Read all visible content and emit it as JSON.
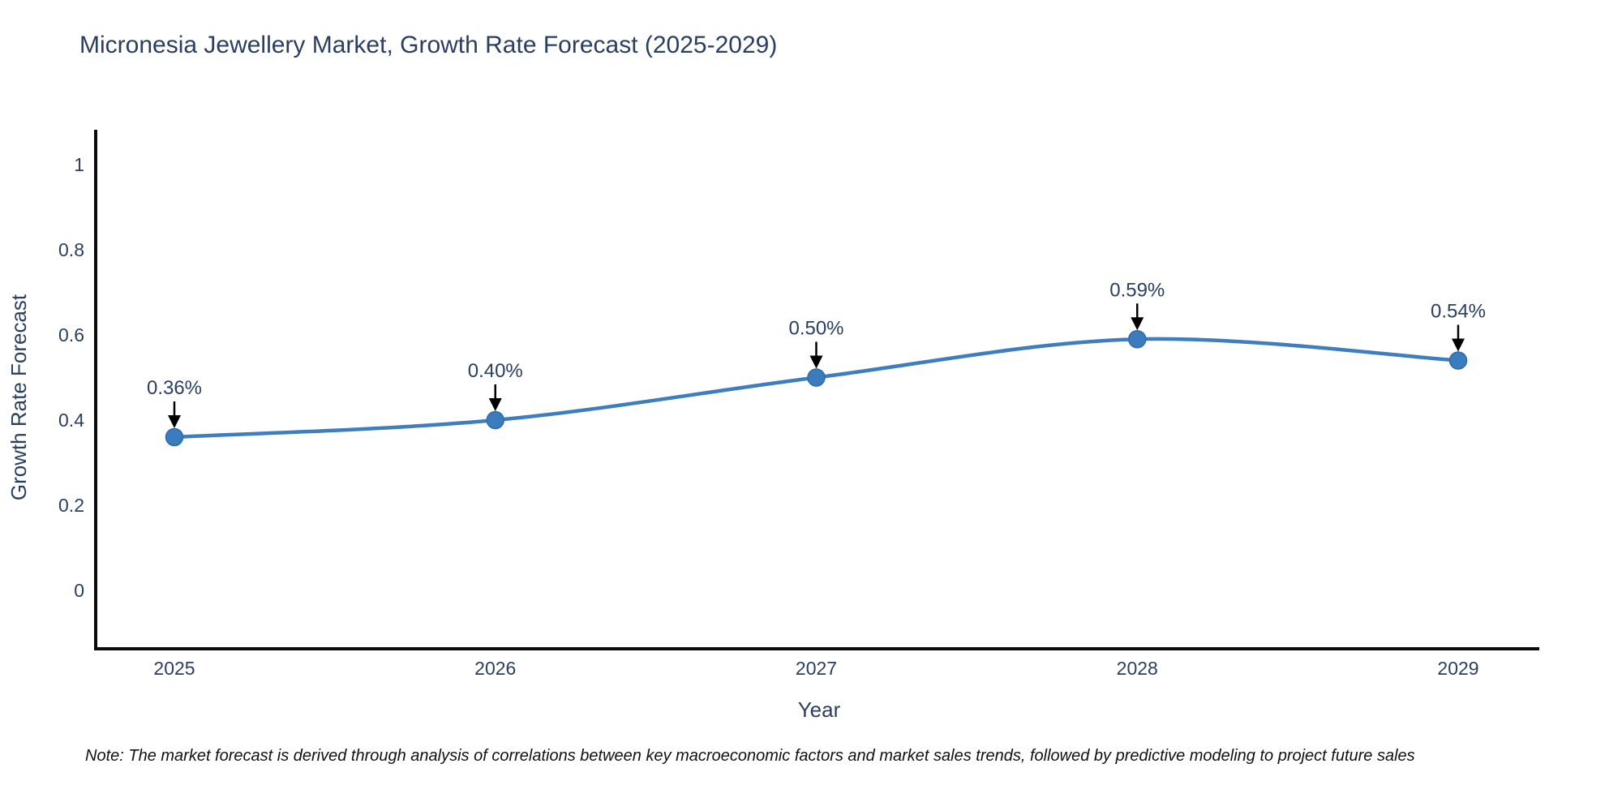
{
  "title": "Micronesia Jewellery Market, Growth Rate Forecast (2025-2029)",
  "note": "Note: The market forecast is derived through analysis of correlations between key macroeconomic factors and market sales trends, followed by predictive modeling to project future sales",
  "chart_data": {
    "type": "line",
    "line_shape": "spline",
    "x": [
      "2025",
      "2026",
      "2027",
      "2028",
      "2029"
    ],
    "series": [
      {
        "name": "Growth Rate Forecast",
        "values": [
          0.36,
          0.4,
          0.5,
          0.59,
          0.54
        ]
      }
    ],
    "annotations": [
      "0.36%",
      "0.40%",
      "0.50%",
      "0.59%",
      "0.54%"
    ],
    "title": "Micronesia Jewellery Market, Growth Rate Forecast (2025-2029)",
    "xlabel": "Year",
    "ylabel": "Growth Rate Forecast",
    "yticks": [
      0,
      0.2,
      0.4,
      0.6,
      0.8,
      1
    ],
    "ytick_labels": [
      "0",
      "0.2",
      "0.4",
      "0.6",
      "0.8",
      "1"
    ],
    "ylim": [
      -0.14,
      1.08
    ],
    "grid": false,
    "legend": false,
    "colors": {
      "line": "#3e7dbe",
      "marker_fill": "#3a7cbd",
      "marker_edge": "#2f6ba8",
      "axis_line": "#0b0b0b",
      "arrow": "#000000",
      "text": "#2a3f5f",
      "note": "#111111"
    }
  }
}
